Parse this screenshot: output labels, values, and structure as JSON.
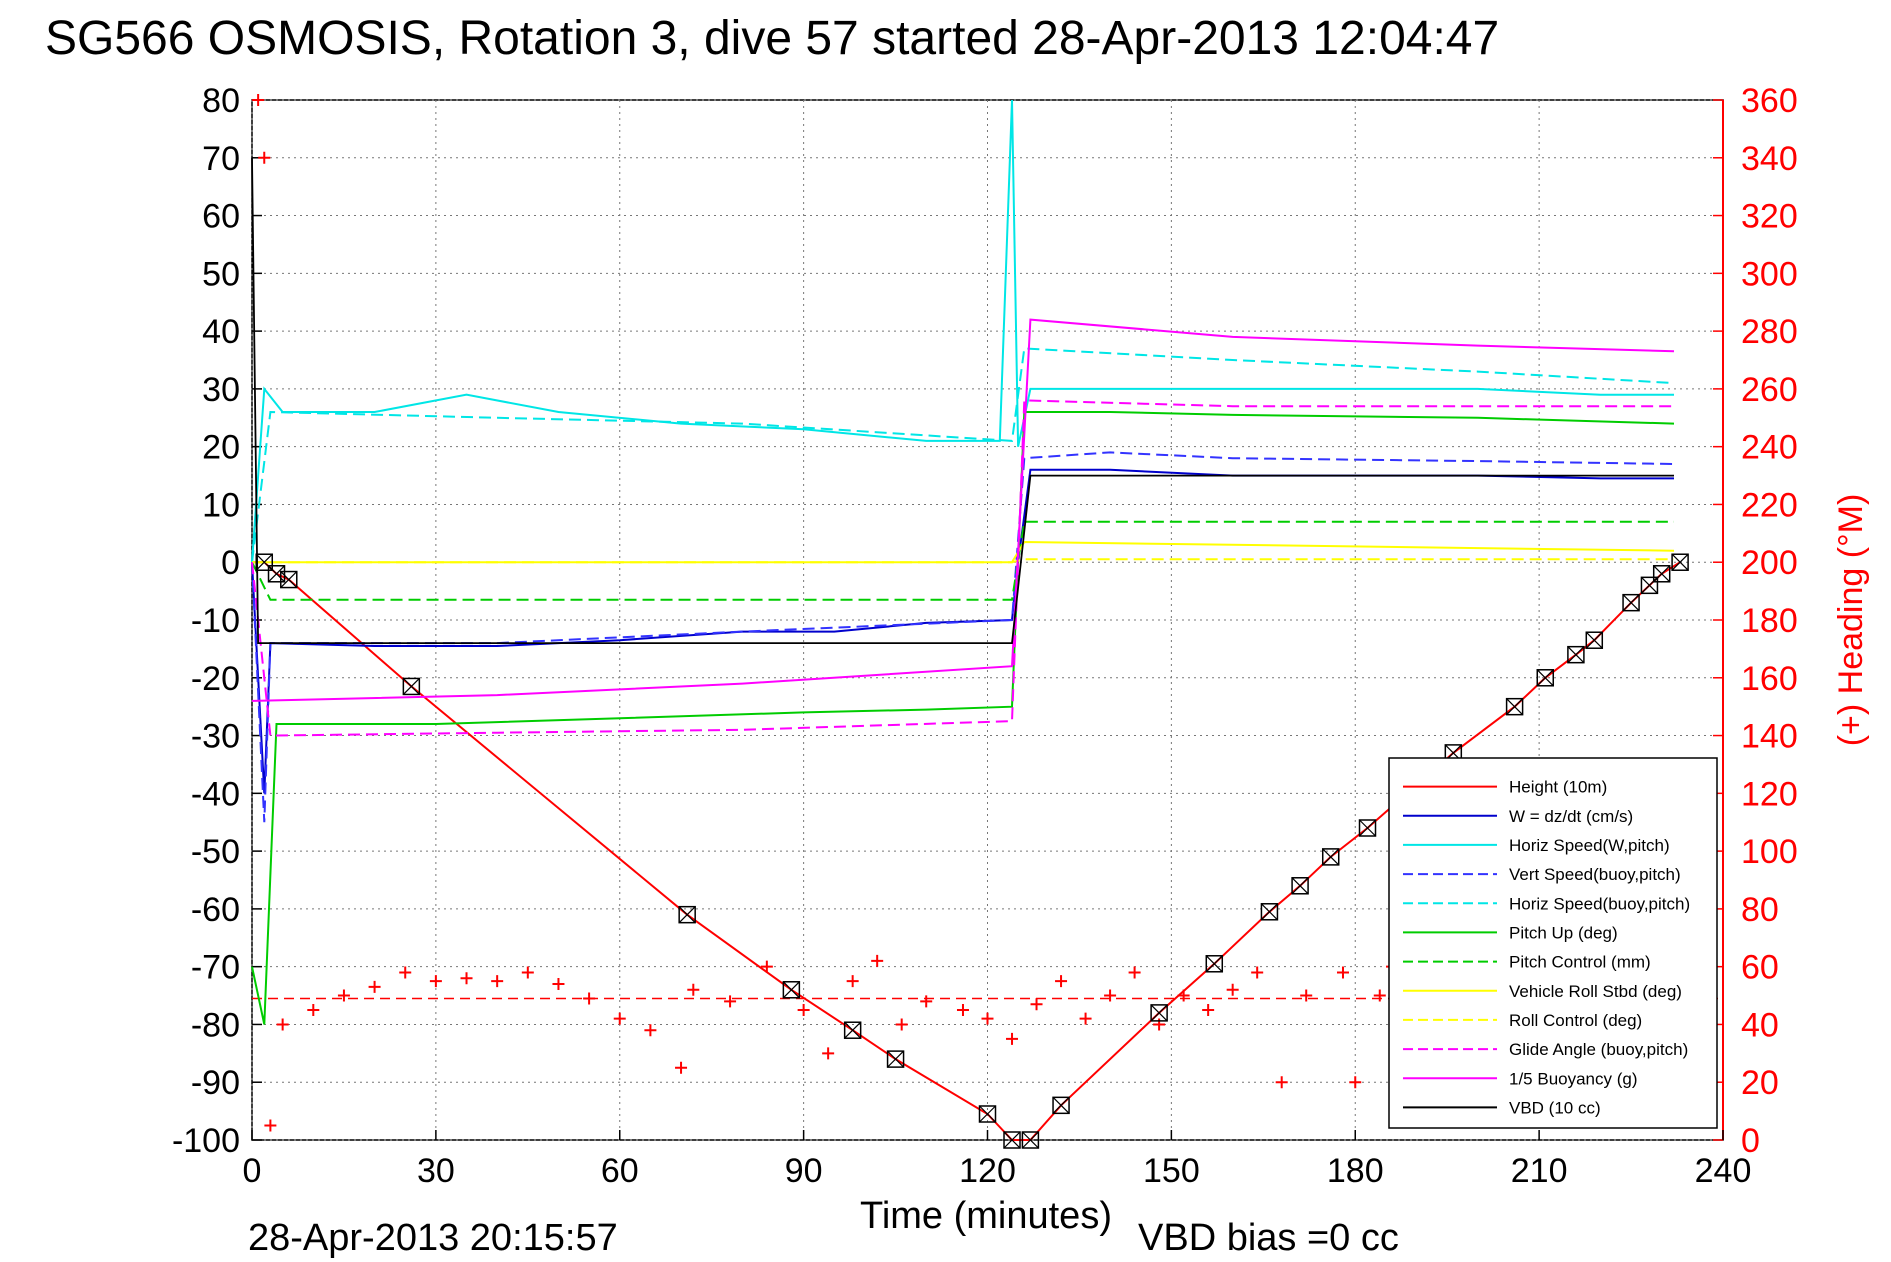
{
  "title": "SG566 OSMOSIS, Rotation 3, dive 57 started 28-Apr-2013 12:04:47",
  "footer_timestamp": "28-Apr-2013 20:15:57",
  "vbd_bias": "VBD bias =0 cc",
  "chart_data": {
    "type": "line",
    "xlabel": "Time (minutes)",
    "ylabel_left": "",
    "ylabel_right": "(+) Heading (°M)",
    "xlim": [
      0,
      240
    ],
    "ylim_left": [
      -100,
      80
    ],
    "ylim_right": [
      0,
      360
    ],
    "x_ticks": [
      "0",
      "30",
      "60",
      "90",
      "120",
      "150",
      "180",
      "210",
      "240"
    ],
    "y_ticks_left": [
      "80",
      "70",
      "60",
      "50",
      "40",
      "30",
      "20",
      "10",
      "0",
      "-10",
      "-20",
      "-30",
      "-40",
      "-50",
      "-60",
      "-70",
      "-80",
      "-90",
      "-100"
    ],
    "y_ticks_right": [
      "360",
      "340",
      "320",
      "300",
      "280",
      "260",
      "240",
      "220",
      "200",
      "180",
      "160",
      "140",
      "120",
      "100",
      "80",
      "60",
      "40",
      "20",
      "0"
    ],
    "grid": true,
    "legend_position": "bottom-right",
    "series": [
      {
        "name": "Height (10m)",
        "color": "#ff0000",
        "style": "solid",
        "points": [
          [
            0,
            0
          ],
          [
            2,
            0
          ],
          [
            4,
            -2
          ],
          [
            6,
            -3
          ],
          [
            26,
            -21.5
          ],
          [
            71,
            -61
          ],
          [
            88,
            -74
          ],
          [
            98,
            -81
          ],
          [
            105,
            -86
          ],
          [
            120,
            -95.5
          ],
          [
            124,
            -100
          ],
          [
            127,
            -100
          ],
          [
            132,
            -94
          ],
          [
            148,
            -78
          ],
          [
            157,
            -69.5
          ],
          [
            166,
            -60.5
          ],
          [
            171,
            -56
          ],
          [
            176,
            -51
          ],
          [
            182,
            -46
          ],
          [
            196,
            -33
          ],
          [
            206,
            -25
          ],
          [
            211,
            -20
          ],
          [
            216,
            -16
          ],
          [
            219,
            -13.5
          ],
          [
            225,
            -7
          ],
          [
            228,
            -4
          ],
          [
            230,
            -2
          ],
          [
            233,
            0
          ]
        ]
      },
      {
        "name": "W = dz/dt (cm/s)",
        "color": "#0000cc",
        "style": "solid",
        "points": [
          [
            0,
            0
          ],
          [
            2,
            -40
          ],
          [
            3,
            -14
          ],
          [
            20,
            -14.5
          ],
          [
            40,
            -14.5
          ],
          [
            60,
            -13.5
          ],
          [
            80,
            -12
          ],
          [
            95,
            -12
          ],
          [
            110,
            -10.5
          ],
          [
            124,
            -10
          ],
          [
            125,
            0
          ],
          [
            127,
            16
          ],
          [
            140,
            16
          ],
          [
            160,
            15
          ],
          [
            180,
            15
          ],
          [
            200,
            15
          ],
          [
            220,
            14.5
          ],
          [
            232,
            14.5
          ]
        ]
      },
      {
        "name": "Horiz Speed(W,pitch)",
        "color": "#00e6e6",
        "style": "solid",
        "points": [
          [
            0,
            0
          ],
          [
            2,
            30
          ],
          [
            5,
            26
          ],
          [
            20,
            26
          ],
          [
            35,
            29
          ],
          [
            50,
            26
          ],
          [
            70,
            24
          ],
          [
            90,
            23
          ],
          [
            110,
            21
          ],
          [
            122,
            21
          ],
          [
            124,
            80
          ],
          [
            125,
            20
          ],
          [
            127,
            30
          ],
          [
            140,
            30
          ],
          [
            160,
            30
          ],
          [
            180,
            30
          ],
          [
            200,
            30
          ],
          [
            220,
            29
          ],
          [
            232,
            29
          ]
        ]
      },
      {
        "name": "Vert Speed(buoy,pitch)",
        "color": "#3333ff",
        "style": "dashed",
        "points": [
          [
            0,
            0
          ],
          [
            2,
            -45
          ],
          [
            3,
            -14
          ],
          [
            40,
            -14
          ],
          [
            80,
            -12
          ],
          [
            124,
            -10
          ],
          [
            126,
            18
          ],
          [
            140,
            19
          ],
          [
            160,
            18
          ],
          [
            200,
            17.5
          ],
          [
            232,
            17
          ]
        ]
      },
      {
        "name": "Horiz Speed(buoy,pitch)",
        "color": "#00e6e6",
        "style": "dashed",
        "points": [
          [
            0,
            0
          ],
          [
            3,
            26
          ],
          [
            40,
            25
          ],
          [
            80,
            24
          ],
          [
            124,
            21
          ],
          [
            126,
            37
          ],
          [
            160,
            35
          ],
          [
            200,
            33
          ],
          [
            232,
            31
          ]
        ]
      },
      {
        "name": "Pitch Up (deg)",
        "color": "#00cc00",
        "style": "solid",
        "points": [
          [
            0,
            -70
          ],
          [
            2,
            -80
          ],
          [
            4,
            -28
          ],
          [
            30,
            -28
          ],
          [
            60,
            -27
          ],
          [
            90,
            -26
          ],
          [
            110,
            -25.5
          ],
          [
            124,
            -25
          ],
          [
            126,
            26
          ],
          [
            140,
            26
          ],
          [
            160,
            25.5
          ],
          [
            200,
            25
          ],
          [
            232,
            24
          ]
        ]
      },
      {
        "name": "Pitch Control (mm)",
        "color": "#00cc00",
        "style": "dashed",
        "points": [
          [
            0,
            0
          ],
          [
            3,
            -6.5
          ],
          [
            60,
            -6.5
          ],
          [
            124,
            -6.5
          ],
          [
            126,
            7
          ],
          [
            232,
            7
          ]
        ]
      },
      {
        "name": "Vehicle Roll Stbd (deg)",
        "color": "#ffff00",
        "style": "solid",
        "points": [
          [
            0,
            0
          ],
          [
            5,
            0
          ],
          [
            60,
            0
          ],
          [
            124,
            0
          ],
          [
            126,
            3.5
          ],
          [
            232,
            2
          ]
        ]
      },
      {
        "name": "Roll Control (deg)",
        "color": "#ffff00",
        "style": "dashed",
        "points": [
          [
            0,
            0
          ],
          [
            5,
            0
          ],
          [
            60,
            0
          ],
          [
            124,
            0
          ],
          [
            126,
            0.5
          ],
          [
            232,
            0.5
          ]
        ]
      },
      {
        "name": "Glide Angle (buoy,pitch)",
        "color": "#ff00ff",
        "style": "dashed",
        "points": [
          [
            0,
            0
          ],
          [
            3,
            -30
          ],
          [
            40,
            -29.5
          ],
          [
            80,
            -29
          ],
          [
            124,
            -27.5
          ],
          [
            126,
            28
          ],
          [
            160,
            27
          ],
          [
            200,
            27
          ],
          [
            232,
            27
          ]
        ]
      },
      {
        "name": "1/5 Buoyancy (g)",
        "color": "#ff00ff",
        "style": "solid",
        "points": [
          [
            0,
            -24
          ],
          [
            40,
            -23
          ],
          [
            80,
            -21
          ],
          [
            124,
            -18
          ],
          [
            127,
            42
          ],
          [
            160,
            39
          ],
          [
            200,
            37.5
          ],
          [
            232,
            36.5
          ]
        ]
      },
      {
        "name": "VBD (10 cc)",
        "color": "#000000",
        "style": "solid",
        "points": [
          [
            0,
            70
          ],
          [
            1,
            -14
          ],
          [
            40,
            -14
          ],
          [
            80,
            -14
          ],
          [
            124,
            -14
          ],
          [
            127,
            15
          ],
          [
            160,
            15
          ],
          [
            200,
            15
          ],
          [
            232,
            15
          ]
        ]
      }
    ],
    "heading_series": {
      "name": "Heading",
      "color": "#ff0000",
      "marker": "+",
      "axis": "right",
      "target_heading": 49,
      "points": [
        [
          1,
          360
        ],
        [
          2,
          340
        ],
        [
          3,
          5
        ],
        [
          5,
          40
        ],
        [
          10,
          45
        ],
        [
          15,
          50
        ],
        [
          20,
          53
        ],
        [
          25,
          58
        ],
        [
          30,
          55
        ],
        [
          35,
          56
        ],
        [
          40,
          55
        ],
        [
          45,
          58
        ],
        [
          50,
          54
        ],
        [
          55,
          49
        ],
        [
          60,
          42
        ],
        [
          65,
          38
        ],
        [
          70,
          25
        ],
        [
          72,
          52
        ],
        [
          78,
          48
        ],
        [
          84,
          60
        ],
        [
          90,
          45
        ],
        [
          94,
          30
        ],
        [
          98,
          55
        ],
        [
          102,
          62
        ],
        [
          106,
          40
        ],
        [
          110,
          48
        ],
        [
          116,
          45
        ],
        [
          120,
          42
        ],
        [
          124,
          35
        ],
        [
          128,
          47
        ],
        [
          132,
          55
        ],
        [
          136,
          42
        ],
        [
          140,
          50
        ],
        [
          144,
          58
        ],
        [
          148,
          40
        ],
        [
          152,
          50
        ],
        [
          156,
          45
        ],
        [
          160,
          52
        ],
        [
          164,
          58
        ],
        [
          168,
          20
        ],
        [
          172,
          50
        ],
        [
          178,
          58
        ],
        [
          180,
          20
        ],
        [
          184,
          50
        ],
        [
          186,
          60
        ]
      ]
    }
  }
}
